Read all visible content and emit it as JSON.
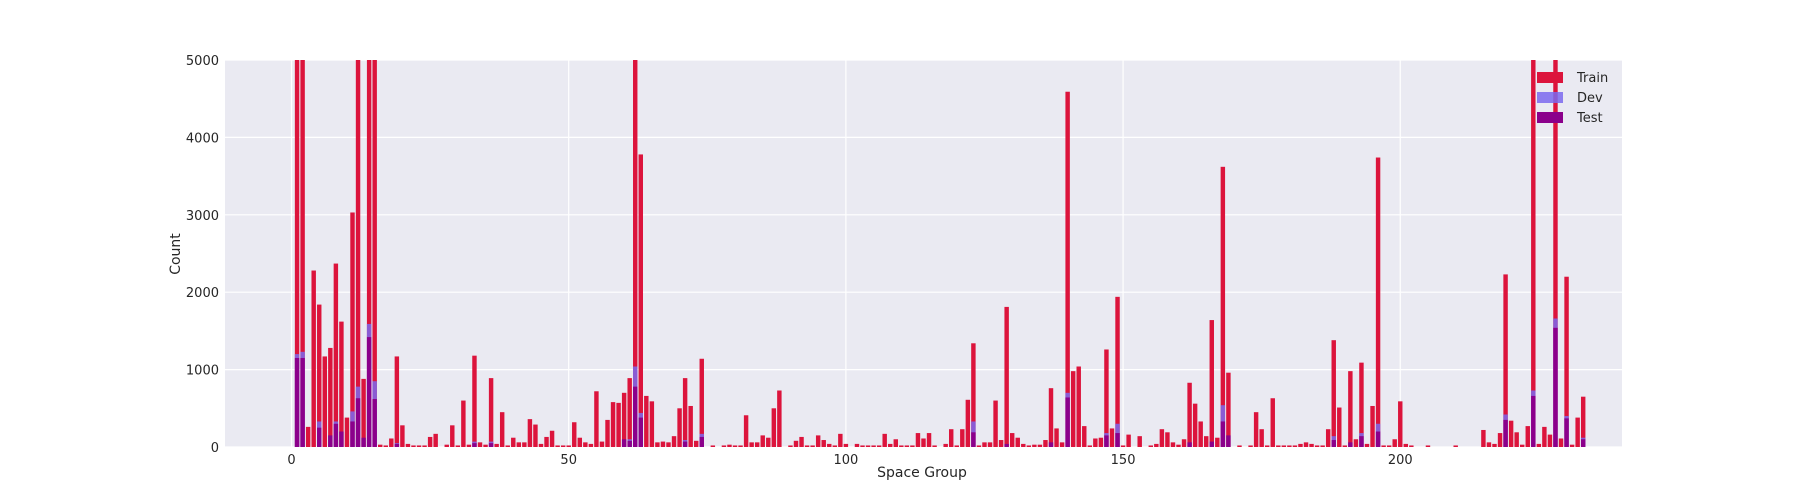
{
  "chart_data": {
    "type": "bar",
    "stacking": "overlaid",
    "xlabel": "Space Group",
    "ylabel": "Count",
    "xlim": [
      -12,
      240
    ],
    "ylim": [
      0,
      5000
    ],
    "xticks": [
      0,
      50,
      100,
      150,
      200
    ],
    "yticks": [
      0,
      1000,
      2000,
      3000,
      4000,
      5000
    ],
    "grid": true,
    "legend": "top-right",
    "colors": {
      "background": "#eaeaf2",
      "grid": "#ffffff",
      "train": "#dc143c",
      "dev": "#7b68ee",
      "test": "#8b008b"
    },
    "series": [
      {
        "name": "Train",
        "points": [
          [
            1,
            5000
          ],
          [
            2,
            5000
          ],
          [
            3,
            260
          ],
          [
            4,
            2280
          ],
          [
            5,
            1840
          ],
          [
            6,
            1170
          ],
          [
            7,
            1280
          ],
          [
            8,
            2370
          ],
          [
            9,
            1620
          ],
          [
            10,
            380
          ],
          [
            11,
            3030
          ],
          [
            12,
            5000
          ],
          [
            13,
            880
          ],
          [
            14,
            5000
          ],
          [
            15,
            5000
          ],
          [
            16,
            30
          ],
          [
            17,
            20
          ],
          [
            18,
            110
          ],
          [
            19,
            1170
          ],
          [
            20,
            280
          ],
          [
            21,
            40
          ],
          [
            22,
            20
          ],
          [
            23,
            20
          ],
          [
            24,
            20
          ],
          [
            25,
            130
          ],
          [
            26,
            170
          ],
          [
            28,
            30
          ],
          [
            29,
            280
          ],
          [
            30,
            20
          ],
          [
            31,
            600
          ],
          [
            32,
            30
          ],
          [
            33,
            1180
          ],
          [
            34,
            60
          ],
          [
            35,
            30
          ],
          [
            36,
            890
          ],
          [
            37,
            40
          ],
          [
            38,
            450
          ],
          [
            39,
            20
          ],
          [
            40,
            120
          ],
          [
            41,
            60
          ],
          [
            42,
            60
          ],
          [
            43,
            360
          ],
          [
            44,
            290
          ],
          [
            45,
            40
          ],
          [
            46,
            130
          ],
          [
            47,
            210
          ],
          [
            48,
            20
          ],
          [
            49,
            20
          ],
          [
            50,
            20
          ],
          [
            51,
            320
          ],
          [
            52,
            120
          ],
          [
            53,
            60
          ],
          [
            54,
            40
          ],
          [
            55,
            720
          ],
          [
            56,
            70
          ],
          [
            57,
            350
          ],
          [
            58,
            580
          ],
          [
            59,
            570
          ],
          [
            60,
            700
          ],
          [
            61,
            890
          ],
          [
            62,
            5000
          ],
          [
            63,
            3780
          ],
          [
            64,
            660
          ],
          [
            65,
            590
          ],
          [
            66,
            60
          ],
          [
            67,
            70
          ],
          [
            68,
            60
          ],
          [
            69,
            140
          ],
          [
            70,
            500
          ],
          [
            71,
            890
          ],
          [
            72,
            530
          ],
          [
            73,
            80
          ],
          [
            74,
            1140
          ],
          [
            76,
            20
          ],
          [
            78,
            20
          ],
          [
            79,
            30
          ],
          [
            80,
            20
          ],
          [
            81,
            20
          ],
          [
            82,
            410
          ],
          [
            83,
            60
          ],
          [
            84,
            60
          ],
          [
            85,
            150
          ],
          [
            86,
            120
          ],
          [
            87,
            500
          ],
          [
            88,
            730
          ],
          [
            90,
            20
          ],
          [
            91,
            80
          ],
          [
            92,
            130
          ],
          [
            93,
            20
          ],
          [
            94,
            20
          ],
          [
            95,
            150
          ],
          [
            96,
            90
          ],
          [
            97,
            40
          ],
          [
            98,
            20
          ],
          [
            99,
            170
          ],
          [
            100,
            40
          ],
          [
            102,
            40
          ],
          [
            103,
            20
          ],
          [
            104,
            20
          ],
          [
            105,
            20
          ],
          [
            106,
            20
          ],
          [
            107,
            170
          ],
          [
            108,
            40
          ],
          [
            109,
            100
          ],
          [
            110,
            20
          ],
          [
            111,
            20
          ],
          [
            112,
            20
          ],
          [
            113,
            180
          ],
          [
            114,
            110
          ],
          [
            115,
            180
          ],
          [
            116,
            20
          ],
          [
            118,
            40
          ],
          [
            119,
            230
          ],
          [
            120,
            20
          ],
          [
            121,
            230
          ],
          [
            122,
            610
          ],
          [
            123,
            1340
          ],
          [
            124,
            20
          ],
          [
            125,
            60
          ],
          [
            126,
            60
          ],
          [
            127,
            600
          ],
          [
            128,
            90
          ],
          [
            129,
            1810
          ],
          [
            130,
            180
          ],
          [
            131,
            120
          ],
          [
            132,
            40
          ],
          [
            133,
            20
          ],
          [
            134,
            30
          ],
          [
            135,
            30
          ],
          [
            136,
            90
          ],
          [
            137,
            760
          ],
          [
            138,
            240
          ],
          [
            139,
            60
          ],
          [
            140,
            4590
          ],
          [
            141,
            980
          ],
          [
            142,
            1040
          ],
          [
            143,
            270
          ],
          [
            144,
            20
          ],
          [
            145,
            110
          ],
          [
            146,
            120
          ],
          [
            147,
            1260
          ],
          [
            148,
            240
          ],
          [
            149,
            1940
          ],
          [
            150,
            20
          ],
          [
            151,
            160
          ],
          [
            153,
            140
          ],
          [
            155,
            20
          ],
          [
            156,
            40
          ],
          [
            157,
            230
          ],
          [
            158,
            190
          ],
          [
            159,
            60
          ],
          [
            160,
            30
          ],
          [
            161,
            100
          ],
          [
            162,
            830
          ],
          [
            163,
            560
          ],
          [
            164,
            330
          ],
          [
            165,
            140
          ],
          [
            166,
            1640
          ],
          [
            167,
            120
          ],
          [
            168,
            3620
          ],
          [
            169,
            960
          ],
          [
            171,
            20
          ],
          [
            173,
            20
          ],
          [
            174,
            450
          ],
          [
            175,
            230
          ],
          [
            176,
            20
          ],
          [
            177,
            630
          ],
          [
            178,
            20
          ],
          [
            179,
            20
          ],
          [
            180,
            20
          ],
          [
            181,
            20
          ],
          [
            182,
            40
          ],
          [
            183,
            60
          ],
          [
            184,
            40
          ],
          [
            185,
            20
          ],
          [
            186,
            20
          ],
          [
            187,
            230
          ],
          [
            188,
            1380
          ],
          [
            189,
            510
          ],
          [
            190,
            20
          ],
          [
            191,
            980
          ],
          [
            192,
            100
          ],
          [
            193,
            1090
          ],
          [
            194,
            40
          ],
          [
            195,
            530
          ],
          [
            196,
            3740
          ],
          [
            197,
            20
          ],
          [
            198,
            20
          ],
          [
            199,
            100
          ],
          [
            200,
            590
          ],
          [
            201,
            40
          ],
          [
            202,
            20
          ],
          [
            205,
            20
          ],
          [
            210,
            20
          ],
          [
            215,
            220
          ],
          [
            216,
            60
          ],
          [
            217,
            40
          ],
          [
            218,
            180
          ],
          [
            219,
            2230
          ],
          [
            220,
            340
          ],
          [
            221,
            190
          ],
          [
            222,
            30
          ],
          [
            223,
            270
          ],
          [
            224,
            5000
          ],
          [
            225,
            40
          ],
          [
            226,
            260
          ],
          [
            227,
            160
          ],
          [
            228,
            5000
          ],
          [
            229,
            110
          ],
          [
            230,
            2200
          ],
          [
            231,
            30
          ],
          [
            232,
            380
          ],
          [
            233,
            650
          ]
        ]
      },
      {
        "name": "Dev",
        "points": [
          [
            1,
            1200
          ],
          [
            2,
            1230
          ],
          [
            5,
            330
          ],
          [
            8,
            330
          ],
          [
            11,
            460
          ],
          [
            12,
            780
          ],
          [
            14,
            1590
          ],
          [
            15,
            850
          ],
          [
            19,
            50
          ],
          [
            33,
            70
          ],
          [
            36,
            70
          ],
          [
            61,
            100
          ],
          [
            62,
            1040
          ],
          [
            63,
            440
          ],
          [
            71,
            90
          ],
          [
            74,
            170
          ],
          [
            123,
            330
          ],
          [
            140,
            700
          ],
          [
            147,
            180
          ],
          [
            149,
            300
          ],
          [
            168,
            540
          ],
          [
            188,
            140
          ],
          [
            193,
            180
          ],
          [
            196,
            300
          ],
          [
            219,
            420
          ],
          [
            224,
            730
          ],
          [
            228,
            1660
          ],
          [
            230,
            400
          ],
          [
            233,
            120
          ]
        ]
      },
      {
        "name": "Test",
        "points": [
          [
            1,
            1150
          ],
          [
            2,
            1150
          ],
          [
            5,
            250
          ],
          [
            7,
            150
          ],
          [
            8,
            300
          ],
          [
            9,
            200
          ],
          [
            11,
            330
          ],
          [
            12,
            630
          ],
          [
            13,
            120
          ],
          [
            14,
            1420
          ],
          [
            15,
            620
          ],
          [
            19,
            40
          ],
          [
            33,
            50
          ],
          [
            36,
            50
          ],
          [
            60,
            100
          ],
          [
            61,
            80
          ],
          [
            62,
            780
          ],
          [
            63,
            380
          ],
          [
            71,
            70
          ],
          [
            74,
            130
          ],
          [
            123,
            190
          ],
          [
            129,
            40
          ],
          [
            137,
            60
          ],
          [
            140,
            640
          ],
          [
            147,
            150
          ],
          [
            149,
            180
          ],
          [
            162,
            60
          ],
          [
            166,
            70
          ],
          [
            168,
            330
          ],
          [
            169,
            150
          ],
          [
            188,
            90
          ],
          [
            191,
            60
          ],
          [
            193,
            140
          ],
          [
            196,
            200
          ],
          [
            219,
            350
          ],
          [
            224,
            660
          ],
          [
            228,
            1540
          ],
          [
            230,
            370
          ],
          [
            233,
            100
          ]
        ]
      }
    ]
  }
}
